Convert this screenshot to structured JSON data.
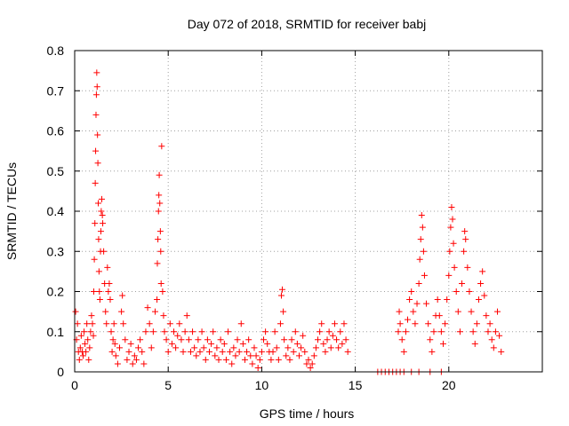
{
  "chart_data": {
    "type": "scatter",
    "title": "Day 072 of 2018, SRMTID for receiver babj",
    "xlabel": "GPS time / hours",
    "ylabel": "SRMTID / TECUs",
    "xlim": [
      0,
      25
    ],
    "ylim": [
      0,
      0.8
    ],
    "xticks": [
      0,
      5,
      10,
      15,
      20
    ],
    "xtick_labels": [
      "0",
      "5",
      "10",
      "15",
      "20"
    ],
    "yticks": [
      0,
      0.1,
      0.2,
      0.3,
      0.4,
      0.5,
      0.6,
      0.7,
      0.8
    ],
    "ytick_labels": [
      "0",
      "0.1",
      "0.2",
      "0.3",
      "0.4",
      "0.5",
      "0.6",
      "0.7",
      "0.8"
    ],
    "grid": true,
    "marker": "+",
    "color": "#ff0000",
    "series": [
      {
        "name": "SRMTID",
        "points": [
          [
            0.05,
            0.15
          ],
          [
            0.1,
            0.08
          ],
          [
            0.15,
            0.12
          ],
          [
            0.2,
            0.05
          ],
          [
            0.25,
            0.03
          ],
          [
            0.3,
            0.06
          ],
          [
            0.35,
            0.09
          ],
          [
            0.4,
            0.05
          ],
          [
            0.45,
            0.04
          ],
          [
            0.5,
            0.1
          ],
          [
            0.55,
            0.07
          ],
          [
            0.6,
            0.05
          ],
          [
            0.65,
            0.12
          ],
          [
            0.7,
            0.08
          ],
          [
            0.75,
            0.03
          ],
          [
            0.8,
            0.06
          ],
          [
            0.85,
            0.1
          ],
          [
            0.9,
            0.14
          ],
          [
            0.95,
            0.12
          ],
          [
            1.0,
            0.09
          ],
          [
            1.02,
            0.2
          ],
          [
            1.05,
            0.28
          ],
          [
            1.08,
            0.37
          ],
          [
            1.1,
            0.47
          ],
          [
            1.12,
            0.55
          ],
          [
            1.14,
            0.64
          ],
          [
            1.16,
            0.69
          ],
          [
            1.18,
            0.745
          ],
          [
            1.2,
            0.71
          ],
          [
            1.22,
            0.59
          ],
          [
            1.24,
            0.52
          ],
          [
            1.26,
            0.42
          ],
          [
            1.28,
            0.33
          ],
          [
            1.3,
            0.25
          ],
          [
            1.32,
            0.2
          ],
          [
            1.35,
            0.18
          ],
          [
            1.38,
            0.3
          ],
          [
            1.4,
            0.35
          ],
          [
            1.42,
            0.4
          ],
          [
            1.45,
            0.43
          ],
          [
            1.48,
            0.39
          ],
          [
            1.5,
            0.37
          ],
          [
            1.55,
            0.3
          ],
          [
            1.6,
            0.22
          ],
          [
            1.65,
            0.15
          ],
          [
            1.7,
            0.12
          ],
          [
            1.75,
            0.26
          ],
          [
            1.8,
            0.2
          ],
          [
            1.85,
            0.22
          ],
          [
            1.9,
            0.18
          ],
          [
            1.95,
            0.1
          ],
          [
            2.0,
            0.05
          ],
          [
            2.05,
            0.08
          ],
          [
            2.1,
            0.12
          ],
          [
            2.15,
            0.07
          ],
          [
            2.2,
            0.04
          ],
          [
            2.3,
            0.02
          ],
          [
            2.4,
            0.06
          ],
          [
            2.5,
            0.15
          ],
          [
            2.55,
            0.19
          ],
          [
            2.6,
            0.12
          ],
          [
            2.7,
            0.08
          ],
          [
            2.8,
            0.03
          ],
          [
            2.9,
            0.05
          ],
          [
            3.0,
            0.07
          ],
          [
            3.1,
            0.02
          ],
          [
            3.2,
            0.04
          ],
          [
            3.3,
            0.03
          ],
          [
            3.4,
            0.06
          ],
          [
            3.5,
            0.08
          ],
          [
            3.6,
            0.05
          ],
          [
            3.7,
            0.02
          ],
          [
            3.8,
            0.1
          ],
          [
            3.9,
            0.16
          ],
          [
            4.0,
            0.12
          ],
          [
            4.1,
            0.06
          ],
          [
            4.2,
            0.1
          ],
          [
            4.3,
            0.15
          ],
          [
            4.4,
            0.18
          ],
          [
            4.42,
            0.27
          ],
          [
            4.45,
            0.33
          ],
          [
            4.48,
            0.4
          ],
          [
            4.5,
            0.44
          ],
          [
            4.52,
            0.49
          ],
          [
            4.55,
            0.42
          ],
          [
            4.58,
            0.35
          ],
          [
            4.6,
            0.3
          ],
          [
            4.62,
            0.22
          ],
          [
            4.65,
            0.562
          ],
          [
            4.7,
            0.2
          ],
          [
            4.75,
            0.14
          ],
          [
            4.8,
            0.1
          ],
          [
            4.9,
            0.08
          ],
          [
            5.0,
            0.05
          ],
          [
            5.1,
            0.12
          ],
          [
            5.2,
            0.07
          ],
          [
            5.3,
            0.1
          ],
          [
            5.4,
            0.06
          ],
          [
            5.5,
            0.09
          ],
          [
            5.6,
            0.12
          ],
          [
            5.7,
            0.08
          ],
          [
            5.8,
            0.05
          ],
          [
            5.9,
            0.1
          ],
          [
            6.0,
            0.14
          ],
          [
            6.1,
            0.08
          ],
          [
            6.2,
            0.05
          ],
          [
            6.3,
            0.1
          ],
          [
            6.4,
            0.06
          ],
          [
            6.5,
            0.04
          ],
          [
            6.6,
            0.08
          ],
          [
            6.7,
            0.05
          ],
          [
            6.8,
            0.1
          ],
          [
            6.9,
            0.06
          ],
          [
            7.0,
            0.03
          ],
          [
            7.1,
            0.08
          ],
          [
            7.2,
            0.05
          ],
          [
            7.3,
            0.07
          ],
          [
            7.4,
            0.1
          ],
          [
            7.5,
            0.04
          ],
          [
            7.6,
            0.06
          ],
          [
            7.7,
            0.03
          ],
          [
            7.8,
            0.08
          ],
          [
            7.9,
            0.05
          ],
          [
            8.0,
            0.07
          ],
          [
            8.1,
            0.03
          ],
          [
            8.2,
            0.1
          ],
          [
            8.3,
            0.05
          ],
          [
            8.4,
            0.02
          ],
          [
            8.5,
            0.06
          ],
          [
            8.6,
            0.04
          ],
          [
            8.7,
            0.08
          ],
          [
            8.8,
            0.05
          ],
          [
            8.9,
            0.12
          ],
          [
            9.0,
            0.07
          ],
          [
            9.1,
            0.03
          ],
          [
            9.2,
            0.05
          ],
          [
            9.3,
            0.08
          ],
          [
            9.4,
            0.04
          ],
          [
            9.5,
            0.02
          ],
          [
            9.6,
            0.06
          ],
          [
            9.7,
            0.04
          ],
          [
            9.8,
            0.01
          ],
          [
            9.9,
            0.03
          ],
          [
            10.0,
            0.05
          ],
          [
            10.1,
            0.08
          ],
          [
            10.2,
            0.1
          ],
          [
            10.3,
            0.07
          ],
          [
            10.4,
            0.05
          ],
          [
            10.5,
            0.03
          ],
          [
            10.6,
            0.05
          ],
          [
            10.7,
            0.1
          ],
          [
            10.8,
            0.06
          ],
          [
            10.9,
            0.03
          ],
          [
            11.0,
            0.12
          ],
          [
            11.05,
            0.19
          ],
          [
            11.1,
            0.205
          ],
          [
            11.15,
            0.15
          ],
          [
            11.2,
            0.08
          ],
          [
            11.3,
            0.04
          ],
          [
            11.4,
            0.06
          ],
          [
            11.5,
            0.03
          ],
          [
            11.6,
            0.08
          ],
          [
            11.7,
            0.05
          ],
          [
            11.8,
            0.1
          ],
          [
            11.9,
            0.07
          ],
          [
            12.0,
            0.04
          ],
          [
            12.1,
            0.06
          ],
          [
            12.2,
            0.09
          ],
          [
            12.3,
            0.05
          ],
          [
            12.4,
            0.02
          ],
          [
            12.5,
            0.03
          ],
          [
            12.6,
            0.01
          ],
          [
            12.7,
            0.02
          ],
          [
            12.8,
            0.04
          ],
          [
            12.9,
            0.06
          ],
          [
            13.0,
            0.08
          ],
          [
            13.1,
            0.1
          ],
          [
            13.2,
            0.12
          ],
          [
            13.3,
            0.07
          ],
          [
            13.4,
            0.05
          ],
          [
            13.5,
            0.08
          ],
          [
            13.6,
            0.1
          ],
          [
            13.7,
            0.06
          ],
          [
            13.8,
            0.09
          ],
          [
            13.9,
            0.12
          ],
          [
            14.0,
            0.08
          ],
          [
            14.1,
            0.06
          ],
          [
            14.2,
            0.1
          ],
          [
            14.3,
            0.07
          ],
          [
            14.4,
            0.12
          ],
          [
            14.5,
            0.08
          ],
          [
            14.6,
            0.05
          ],
          [
            16.2,
            0.0
          ],
          [
            16.4,
            0.0
          ],
          [
            16.6,
            0.0
          ],
          [
            16.8,
            0.0
          ],
          [
            17.0,
            0.0
          ],
          [
            17.2,
            0.0
          ],
          [
            17.4,
            0.0
          ],
          [
            17.6,
            0.0
          ],
          [
            18.0,
            0.0
          ],
          [
            18.4,
            0.0
          ],
          [
            19.0,
            0.0
          ],
          [
            19.6,
            0.0
          ],
          [
            17.3,
            0.1
          ],
          [
            17.35,
            0.15
          ],
          [
            17.4,
            0.12
          ],
          [
            17.5,
            0.08
          ],
          [
            17.6,
            0.05
          ],
          [
            17.7,
            0.1
          ],
          [
            17.8,
            0.13
          ],
          [
            17.9,
            0.18
          ],
          [
            18.0,
            0.2
          ],
          [
            18.1,
            0.15
          ],
          [
            18.2,
            0.12
          ],
          [
            18.3,
            0.17
          ],
          [
            18.4,
            0.22
          ],
          [
            18.45,
            0.28
          ],
          [
            18.5,
            0.33
          ],
          [
            18.55,
            0.39
          ],
          [
            18.6,
            0.36
          ],
          [
            18.65,
            0.3
          ],
          [
            18.7,
            0.24
          ],
          [
            18.8,
            0.17
          ],
          [
            18.9,
            0.12
          ],
          [
            19.0,
            0.08
          ],
          [
            19.1,
            0.05
          ],
          [
            19.2,
            0.1
          ],
          [
            19.3,
            0.14
          ],
          [
            19.4,
            0.18
          ],
          [
            19.5,
            0.14
          ],
          [
            19.6,
            0.1
          ],
          [
            19.7,
            0.07
          ],
          [
            19.8,
            0.12
          ],
          [
            19.9,
            0.18
          ],
          [
            20.0,
            0.24
          ],
          [
            20.05,
            0.3
          ],
          [
            20.1,
            0.36
          ],
          [
            20.15,
            0.41
          ],
          [
            20.2,
            0.38
          ],
          [
            20.25,
            0.32
          ],
          [
            20.3,
            0.26
          ],
          [
            20.4,
            0.2
          ],
          [
            20.5,
            0.15
          ],
          [
            20.6,
            0.1
          ],
          [
            20.7,
            0.22
          ],
          [
            20.8,
            0.3
          ],
          [
            20.85,
            0.35
          ],
          [
            20.9,
            0.33
          ],
          [
            21.0,
            0.26
          ],
          [
            21.1,
            0.2
          ],
          [
            21.2,
            0.15
          ],
          [
            21.3,
            0.1
          ],
          [
            21.4,
            0.07
          ],
          [
            21.5,
            0.12
          ],
          [
            21.6,
            0.18
          ],
          [
            21.7,
            0.22
          ],
          [
            21.8,
            0.25
          ],
          [
            21.9,
            0.19
          ],
          [
            22.0,
            0.14
          ],
          [
            22.1,
            0.1
          ],
          [
            22.2,
            0.12
          ],
          [
            22.3,
            0.08
          ],
          [
            22.4,
            0.06
          ],
          [
            22.5,
            0.1
          ],
          [
            22.6,
            0.15
          ],
          [
            22.7,
            0.09
          ],
          [
            22.8,
            0.05
          ]
        ]
      }
    ]
  }
}
